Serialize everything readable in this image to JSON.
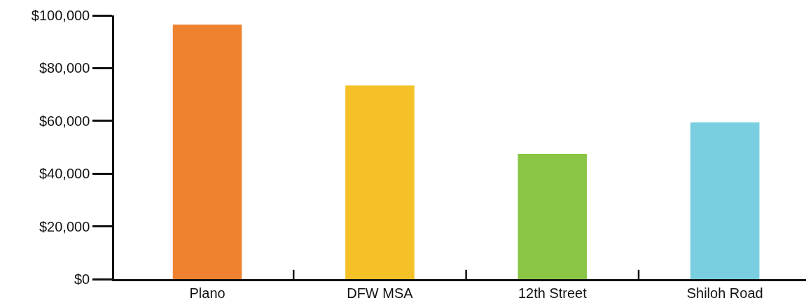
{
  "chart_data": {
    "type": "bar",
    "categories": [
      "Plano",
      "DFW MSA",
      "12th Street",
      "Shiloh Road"
    ],
    "values": [
      96500,
      73400,
      47500,
      59400
    ],
    "colors": [
      "#ee822f",
      "#f4c127",
      "#8ac545",
      "#79cfe0"
    ],
    "ylim": [
      0,
      100000
    ],
    "yticks": [
      {
        "value": 0,
        "label": "$0"
      },
      {
        "value": 20000,
        "label": "$20,000"
      },
      {
        "value": 40000,
        "label": "$40,000"
      },
      {
        "value": 60000,
        "label": "$60,000"
      },
      {
        "value": 80000,
        "label": "$80,000"
      },
      {
        "value": 100000,
        "label": "$100,000"
      }
    ],
    "tick_labels": "xy"
  }
}
